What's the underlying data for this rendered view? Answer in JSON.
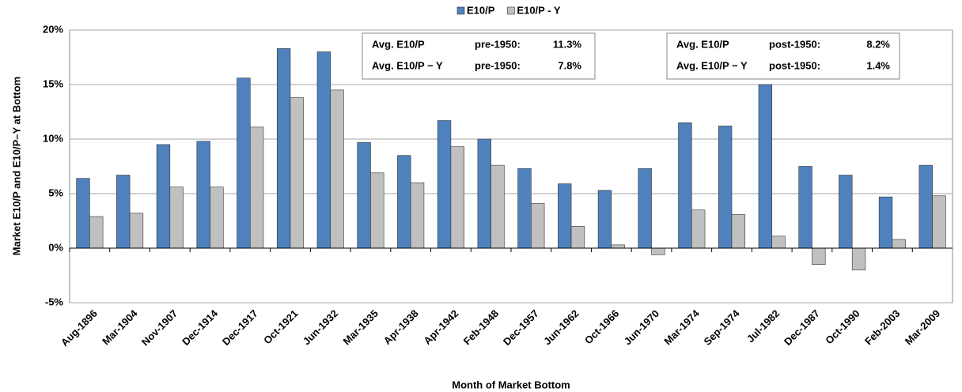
{
  "chart_data": {
    "type": "bar",
    "y_label": "Market E10/P and E10/P–Y at Bottom",
    "x_label": "Month of Market Bottom",
    "categories": [
      "Aug-1896",
      "Mar-1904",
      "Nov-1907",
      "Dec-1914",
      "Dec-1917",
      "Oct-1921",
      "Jun-1932",
      "Mar-1935",
      "Apr-1938",
      "Apr-1942",
      "Feb-1948",
      "Dec-1957",
      "Jun-1962",
      "Oct-1966",
      "Jun-1970",
      "Mar-1974",
      "Sep-1974",
      "Jul-1982",
      "Dec-1987",
      "Oct-1990",
      "Feb-2003",
      "Mar-2009"
    ],
    "series": [
      {
        "name": "E10/P",
        "color": "#4f81bd",
        "values": [
          6.4,
          6.7,
          9.5,
          9.8,
          15.6,
          18.3,
          18.0,
          9.7,
          8.5,
          11.7,
          10.0,
          7.3,
          5.9,
          5.3,
          7.3,
          11.5,
          11.2,
          15.0,
          7.5,
          6.7,
          4.7,
          7.6
        ]
      },
      {
        "name": "E10/P - Y",
        "color": "#c0c0c0",
        "values": [
          2.9,
          3.2,
          5.6,
          5.6,
          11.1,
          13.8,
          14.5,
          6.9,
          6.0,
          9.3,
          7.6,
          4.1,
          2.0,
          0.3,
          -0.6,
          3.5,
          3.1,
          1.1,
          -1.5,
          -2.0,
          0.8,
          4.8
        ]
      }
    ],
    "ylim": [
      -5,
      20
    ],
    "yticks": [
      {
        "value": -5,
        "label": "-5%"
      },
      {
        "value": 0,
        "label": "0%"
      },
      {
        "value": 5,
        "label": "5%"
      },
      {
        "value": 10,
        "label": "10%"
      },
      {
        "value": 15,
        "label": "15%"
      },
      {
        "value": 20,
        "label": "20%"
      }
    ],
    "grid": true,
    "legend": "top",
    "annotations": [
      {
        "rows": [
          [
            "Avg. E10/P",
            "pre-1950:",
            "11.3%"
          ],
          [
            "Avg. E10/P − Y",
            "pre-1950:",
            "7.8%"
          ]
        ]
      },
      {
        "rows": [
          [
            "Avg. E10/P",
            "post-1950:",
            "8.2%"
          ],
          [
            "Avg. E10/P − Y",
            "post-1950:",
            "1.4%"
          ]
        ]
      }
    ]
  }
}
